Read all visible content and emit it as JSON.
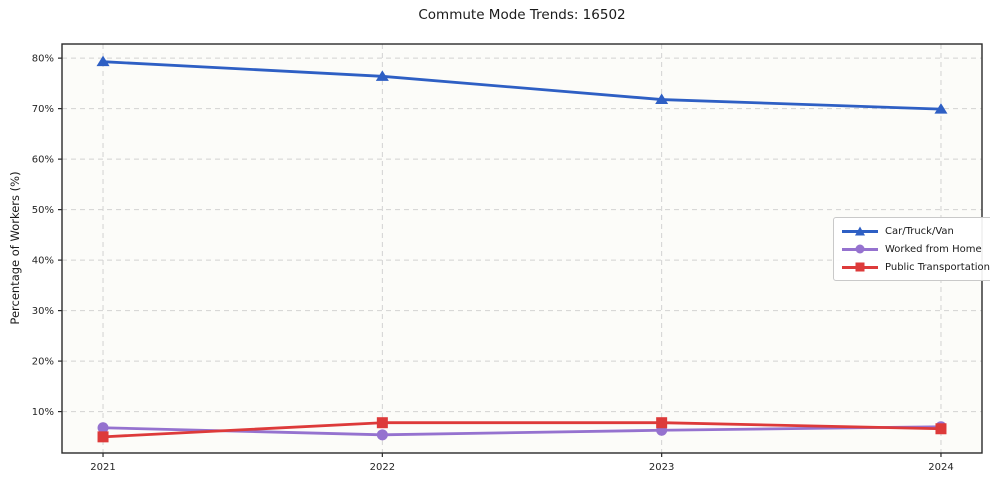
{
  "chart_data": {
    "type": "line",
    "title": "Commute Mode Trends: 16502",
    "xlabel": "",
    "ylabel": "Percentage of Workers (%)",
    "categories": [
      "2021",
      "2022",
      "2023",
      "2024"
    ],
    "series": [
      {
        "name": "Car/Truck/Van",
        "marker": "triangle",
        "color": "#2e5fc4",
        "values": [
          79.3,
          76.4,
          71.8,
          69.9
        ]
      },
      {
        "name": "Worked from Home",
        "marker": "circle",
        "color": "#9572cf",
        "values": [
          6.8,
          5.4,
          6.3,
          7.0
        ]
      },
      {
        "name": "Public Transportation",
        "marker": "square",
        "color": "#dd3a3a",
        "values": [
          5.0,
          7.8,
          7.8,
          6.6
        ]
      }
    ],
    "ylim": [
      1.8,
      82.8
    ],
    "ytick_values": [
      10,
      20,
      30,
      40,
      50,
      60,
      70,
      80
    ],
    "ytick_labels": [
      "10%",
      "20%",
      "30%",
      "40%",
      "50%",
      "60%",
      "70%",
      "80%"
    ],
    "grid": true,
    "grid_style": "dashed",
    "legend_position": "center right"
  },
  "colors": {
    "plot_background": "#fcfcf9",
    "grid": "#d2d2d2",
    "spine": "#2a2a2a",
    "text": "#1a1a1a"
  }
}
